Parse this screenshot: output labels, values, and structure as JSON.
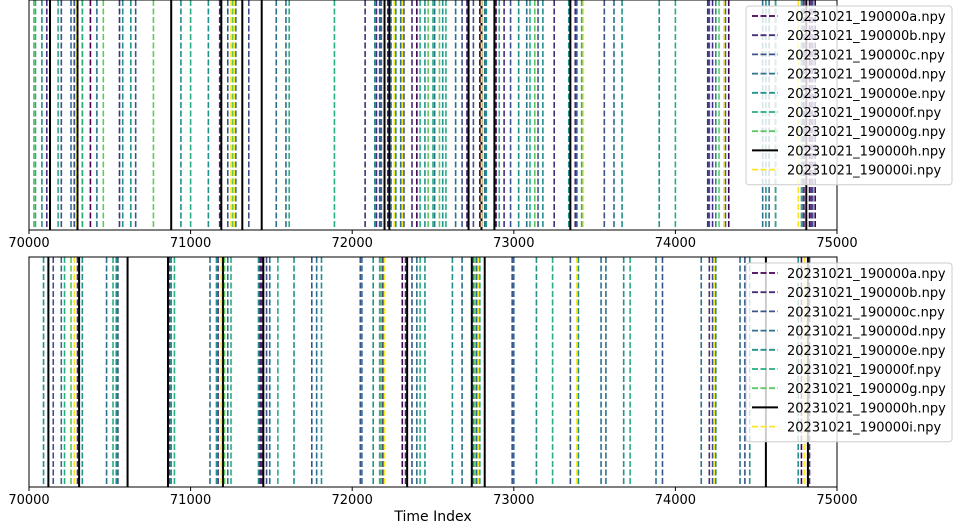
{
  "chart_data": [
    {
      "type": "line",
      "panel": "top",
      "xlim": [
        70000,
        75000
      ],
      "xticks": [
        70000,
        71000,
        72000,
        73000,
        74000,
        75000
      ],
      "xlabel": "",
      "ylabel": "",
      "grid": false,
      "legend_position": "upper right",
      "series": [
        {
          "name": "20231021_190000a.npy",
          "color": "#440154",
          "style": "dashed",
          "x": [
            70380,
            72180,
            72400,
            72790,
            72890,
            74330,
            74795,
            74830,
            74865
          ]
        },
        {
          "name": "20231021_190000b.npy",
          "color": "#472d7b",
          "style": "dashed",
          "x": [
            70110,
            70560,
            71180,
            72080,
            72150,
            72220,
            72370,
            72710,
            72940,
            73250,
            73380,
            74200,
            74230,
            74840
          ]
        },
        {
          "name": "20231021_190000c.npy",
          "color": "#3b528b",
          "style": "dashed",
          "x": [
            70200,
            70280,
            70330,
            70660,
            71230,
            71360,
            72170,
            72200,
            72320,
            72680,
            72750,
            72980,
            73150,
            73390,
            73560,
            74210,
            74620,
            74790,
            74850
          ]
        },
        {
          "name": "20231021_190000d.npy",
          "color": "#2c728e",
          "style": "dashed",
          "x": [
            70260,
            70420,
            71280,
            71530,
            71590,
            72180,
            72240,
            72300,
            72510,
            72640,
            72820,
            73080,
            73620,
            74310,
            74540,
            74580
          ]
        },
        {
          "name": "20231021_190000e.npy",
          "color": "#21918c",
          "style": "dashed",
          "x": [
            70080,
            70580,
            70630,
            70940,
            71110,
            72140,
            72270,
            72450,
            72560,
            72830,
            73030,
            73180,
            73340,
            73670,
            73900,
            74250,
            74560
          ]
        },
        {
          "name": "20231021_190000f.npy",
          "color": "#28ae80",
          "style": "dashed",
          "x": [
            70040,
            70180,
            70330,
            71000,
            71610,
            71890,
            72420,
            72500,
            72580,
            72910,
            73100,
            73420,
            74000,
            74620,
            74780
          ]
        },
        {
          "name": "20231021_190000g.npy",
          "color": "#5ec962",
          "style": "dashed",
          "x": [
            70030,
            70460,
            70770,
            71260,
            72470,
            72540,
            73130,
            74270
          ]
        },
        {
          "name": "20231021_190000h.npy",
          "color": "#000000",
          "style": "solid",
          "x": [
            70130,
            70300,
            70880,
            71190,
            71320,
            71440,
            72200,
            72230,
            72720,
            72800,
            72880,
            73350,
            74810
          ]
        },
        {
          "name": "20231021_190000i.npy",
          "color": "#fde725",
          "style": "dashed",
          "x": [
            70290,
            71250,
            71270,
            72260,
            72310,
            72800,
            73430,
            74300,
            74760
          ]
        }
      ]
    },
    {
      "type": "line",
      "panel": "bottom",
      "xlim": [
        70000,
        75000
      ],
      "xticks": [
        70000,
        71000,
        72000,
        73000,
        74000,
        75000
      ],
      "xlabel": "Time Index",
      "ylabel": "",
      "grid": false,
      "legend_position": "upper right",
      "series": [
        {
          "name": "20231021_190000a.npy",
          "color": "#440154",
          "style": "dashed",
          "x": [
            71430,
            72310,
            74780
          ]
        },
        {
          "name": "20231021_190000b.npy",
          "color": "#472d7b",
          "style": "dashed",
          "x": [
            70300,
            71170,
            71440,
            72190,
            72330,
            74210,
            74830
          ]
        },
        {
          "name": "20231021_190000c.npy",
          "color": "#3b528b",
          "style": "dashed",
          "x": [
            70150,
            70550,
            70870,
            71200,
            71470,
            71750,
            72050,
            72370,
            72990,
            73350,
            73920,
            74230,
            74430
          ]
        },
        {
          "name": "20231021_190000d.npy",
          "color": "#2c728e",
          "style": "dashed",
          "x": [
            70200,
            70480,
            70610,
            71120,
            71230,
            71490,
            71780,
            72060,
            72400,
            72680,
            72770,
            73000,
            73540,
            73570,
            73880,
            74160,
            74400,
            74800
          ]
        },
        {
          "name": "20231021_190000e.npy",
          "color": "#21918c",
          "style": "dashed",
          "x": [
            70090,
            70330,
            70540,
            70880,
            71160,
            71420,
            71640,
            71810,
            72130,
            72450,
            72620,
            72750,
            73140,
            73400,
            73680,
            74250,
            74460,
            74760
          ]
        },
        {
          "name": "20231021_190000f.npy",
          "color": "#28ae80",
          "style": "dashed",
          "x": [
            70220,
            70520,
            70900,
            71250,
            71540,
            72170,
            72420,
            72790,
            73240,
            73720
          ]
        },
        {
          "name": "20231021_190000g.npy",
          "color": "#5ec962",
          "style": "dashed",
          "x": [
            70260,
            71210,
            72180,
            72760,
            74240
          ]
        },
        {
          "name": "20231021_190000h.npy",
          "color": "#000000",
          "style": "solid",
          "x": [
            70120,
            70310,
            70610,
            70860,
            71200,
            71450,
            72340,
            72740,
            72820,
            74560,
            74820
          ]
        },
        {
          "name": "20231021_190000i.npy",
          "color": "#fde725",
          "style": "dashed",
          "x": [
            70280,
            71190,
            72200,
            72780,
            73390,
            74240,
            74800
          ]
        }
      ]
    }
  ]
}
